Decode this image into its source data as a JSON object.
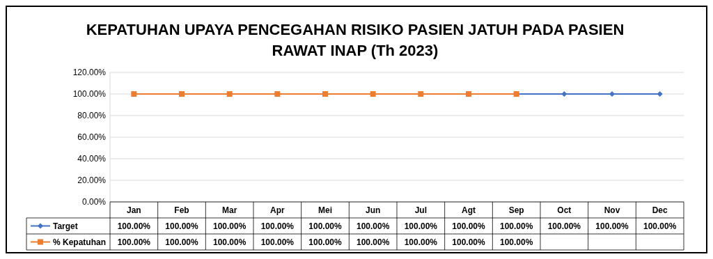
{
  "chart_data": {
    "type": "line",
    "title": "KEPATUHAN UPAYA PENCEGAHAN RISIKO PASIEN JATUH PADA PASIEN RAWAT INAP (Th 2023)",
    "categories": [
      "Jan",
      "Feb",
      "Mar",
      "Apr",
      "Mei",
      "Jun",
      "Jul",
      "Agt",
      "Sep",
      "Oct",
      "Nov",
      "Dec"
    ],
    "series": [
      {
        "name": "Target",
        "color": "#4472c4",
        "marker": "diamond",
        "values": [
          null,
          null,
          null,
          null,
          null,
          null,
          null,
          null,
          100,
          100,
          100,
          100
        ],
        "value_labels": [
          "100.00%",
          "100.00%",
          "100.00%",
          "100.00%",
          "100.00%",
          "100.00%",
          "100.00%",
          "100.00%",
          "100.00%",
          "100.00%",
          "100.00%",
          "100.00%"
        ]
      },
      {
        "name": "% Kepatuhan",
        "color": "#ed7d31",
        "marker": "square",
        "values": [
          100,
          100,
          100,
          100,
          100,
          100,
          100,
          100,
          100,
          null,
          null,
          null
        ],
        "value_labels": [
          "100.00%",
          "100.00%",
          "100.00%",
          "100.00%",
          "100.00%",
          "100.00%",
          "100.00%",
          "100.00%",
          "100.00%",
          null,
          null,
          null
        ]
      }
    ],
    "ylim": [
      0,
      120
    ],
    "yticks": [
      {
        "value": 0,
        "label": "0.00%"
      },
      {
        "value": 20,
        "label": "20.00%"
      },
      {
        "value": 40,
        "label": "40.00%"
      },
      {
        "value": 60,
        "label": "60.00%"
      },
      {
        "value": 80,
        "label": "80.00%"
      },
      {
        "value": 100,
        "label": "100.00%"
      },
      {
        "value": 120,
        "label": "120.00%"
      }
    ],
    "grid": "y",
    "legend": "bottom",
    "line_style": "solid"
  }
}
